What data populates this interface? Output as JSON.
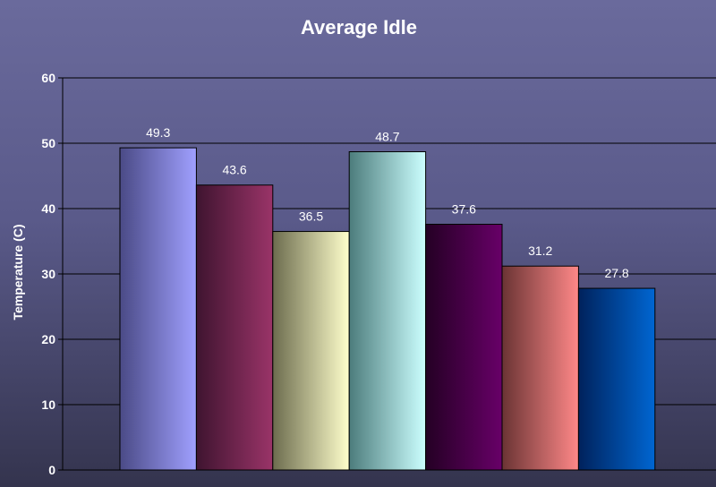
{
  "chart_data": {
    "type": "bar",
    "title": "Average Idle",
    "xlabel": "",
    "ylabel": "Temperature (C)",
    "ylim": [
      0,
      60
    ],
    "yticks": [
      0,
      10,
      20,
      30,
      40,
      50,
      60
    ],
    "grid": true,
    "legend": "none",
    "series": [
      {
        "value": 49.3,
        "label": "49.3",
        "color_dark": "#4a4a86",
        "color_light": "#a0a0ff"
      },
      {
        "value": 43.6,
        "label": "43.6",
        "color_dark": "#3f1430",
        "color_light": "#9a3468"
      },
      {
        "value": 36.5,
        "label": "36.5",
        "color_dark": "#6c6c4e",
        "color_light": "#ffffcc"
      },
      {
        "value": 48.7,
        "label": "48.7",
        "color_dark": "#4c7c7c",
        "color_light": "#ccffff"
      },
      {
        "value": 37.6,
        "label": "37.6",
        "color_dark": "#240024",
        "color_light": "#680068"
      },
      {
        "value": 31.2,
        "label": "31.2",
        "color_dark": "#6a3434",
        "color_light": "#ff8888"
      },
      {
        "value": 27.8,
        "label": "27.8",
        "color_dark": "#00225c",
        "color_light": "#0066d2"
      }
    ]
  }
}
